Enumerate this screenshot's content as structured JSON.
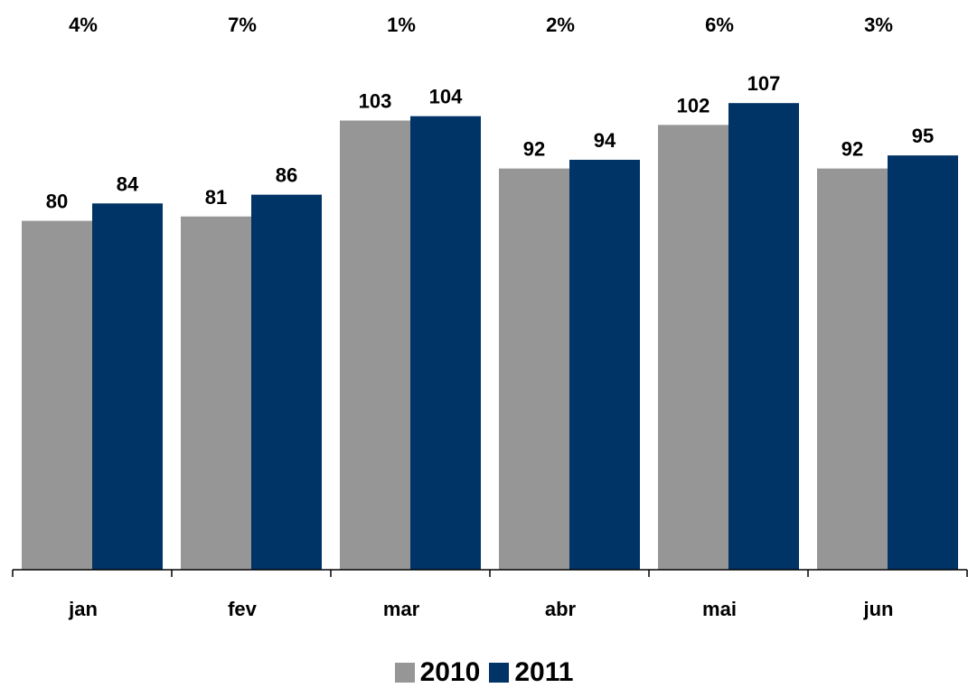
{
  "chart_data": {
    "type": "bar",
    "categories": [
      "jan",
      "fev",
      "mar",
      "abr",
      "mai",
      "jun"
    ],
    "series": [
      {
        "name": "2010",
        "color": "#969696",
        "values": [
          80,
          81,
          103,
          92,
          102,
          92
        ]
      },
      {
        "name": "2011",
        "color": "#003366",
        "values": [
          84,
          86,
          104,
          94,
          107,
          95
        ]
      }
    ],
    "growth_labels": [
      "4%",
      "7%",
      "1%",
      "2%",
      "6%",
      "3%"
    ],
    "ylim": [
      0,
      115
    ],
    "grid": false,
    "legend_position": "bottom"
  }
}
